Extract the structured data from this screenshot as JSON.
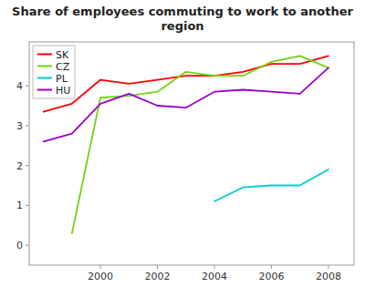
{
  "chart_data": {
    "type": "line",
    "title": "Share of employees commuting to work to another\nregion",
    "series": [
      {
        "name": "SK",
        "color": "#ff0000",
        "x": [
          1998,
          1999,
          2000,
          2001,
          2002,
          2003,
          2004,
          2005,
          2006,
          2007,
          2008
        ],
        "values": [
          3.35,
          3.55,
          4.15,
          4.05,
          4.15,
          4.25,
          4.25,
          4.35,
          4.55,
          4.55,
          4.75
        ]
      },
      {
        "name": "CZ",
        "color": "#73d216",
        "x": [
          1999,
          2000,
          2001,
          2002,
          2003,
          2004,
          2005,
          2006,
          2007,
          2008
        ],
        "values": [
          0.3,
          3.7,
          3.75,
          3.85,
          4.35,
          4.25,
          4.25,
          4.6,
          4.75,
          4.45
        ]
      },
      {
        "name": "PL",
        "color": "#00cccc",
        "x": [
          2004,
          2005,
          2006,
          2007,
          2008
        ],
        "values": [
          1.1,
          1.45,
          1.5,
          1.5,
          1.9
        ]
      },
      {
        "name": "HU",
        "color": "#9900cc",
        "x": [
          1998,
          1999,
          2000,
          2001,
          2002,
          2003,
          2004,
          2005,
          2006,
          2007,
          2008
        ],
        "values": [
          2.6,
          2.8,
          3.55,
          3.8,
          3.5,
          3.45,
          3.85,
          3.9,
          3.85,
          3.8,
          4.45
        ]
      }
    ],
    "xlim": [
      1997.5,
      2008.9
    ],
    "ylim": [
      -0.5,
      5.1
    ],
    "xticks": [
      2000,
      2002,
      2004,
      2006,
      2008
    ],
    "yticks": [
      0,
      1,
      2,
      3,
      4
    ],
    "grid": false,
    "legend": "upper left"
  }
}
